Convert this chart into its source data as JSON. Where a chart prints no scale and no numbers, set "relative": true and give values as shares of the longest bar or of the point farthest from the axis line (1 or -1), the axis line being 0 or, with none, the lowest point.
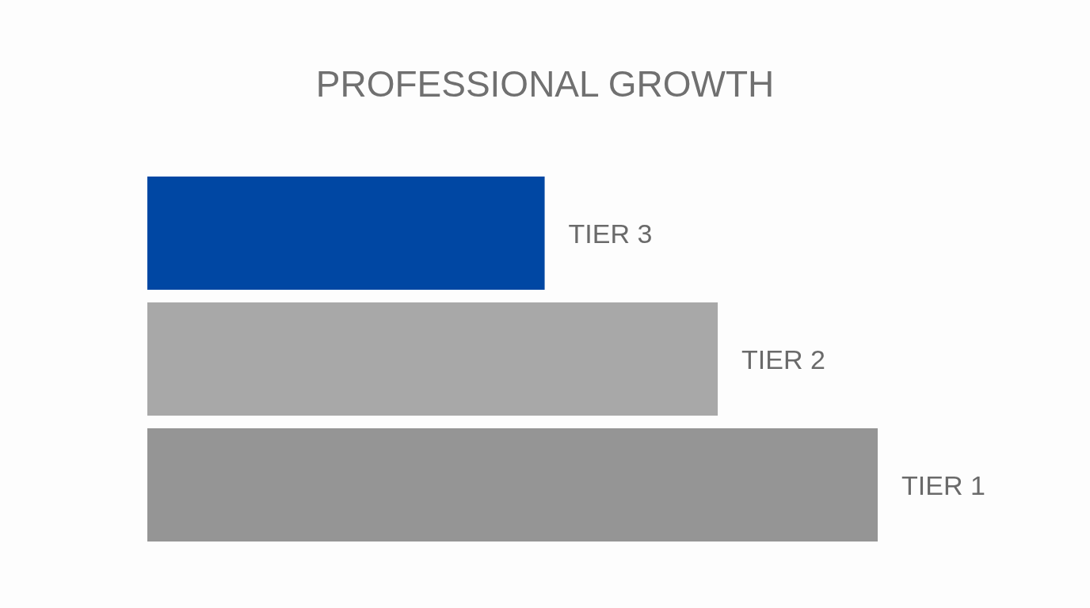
{
  "chart_data": {
    "type": "bar",
    "title": "PROFESSIONAL GROWTH",
    "orientation": "horizontal",
    "relative": true,
    "categories": [
      "TIER 3",
      "TIER 2",
      "TIER 1"
    ],
    "values": [
      0.544,
      0.781,
      1
    ],
    "colors": [
      "#0047a3",
      "#a8a8a8",
      "#959595"
    ]
  }
}
